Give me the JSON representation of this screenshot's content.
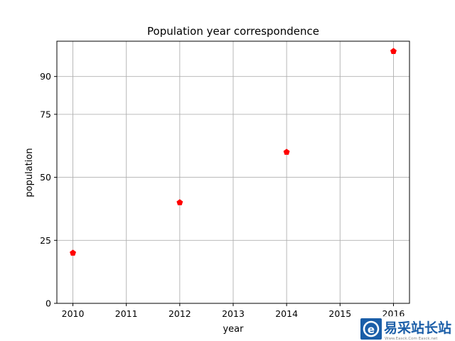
{
  "chart_data": {
    "type": "scatter",
    "title": "Population year correspondence",
    "xlabel": "year",
    "ylabel": "population",
    "x": [
      2010,
      2012,
      2014,
      2016
    ],
    "y": [
      20,
      40,
      60,
      100
    ],
    "xlim": [
      2009.7,
      2016.3
    ],
    "ylim": [
      0,
      104
    ],
    "xticks": [
      2010,
      2011,
      2012,
      2013,
      2014,
      2015,
      2016
    ],
    "yticks": [
      0,
      25,
      50,
      75,
      90
    ],
    "grid": true,
    "marker": "pentagon",
    "marker_color": "#ff0000"
  },
  "watermark": {
    "text": "易采站长站",
    "subtext": "Www.Easck.Com  Easck.net",
    "icon": "e-logo-icon",
    "color": "#1b5ea8"
  }
}
